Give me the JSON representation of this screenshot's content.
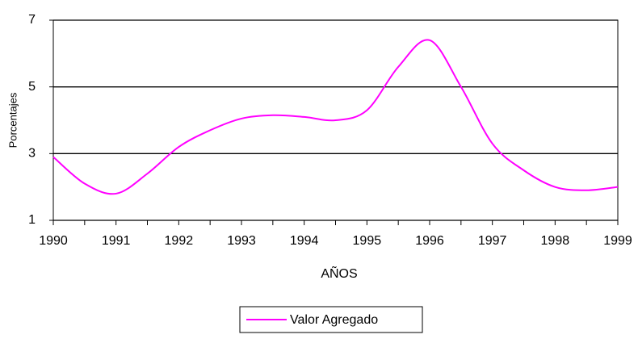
{
  "chart_data": {
    "type": "line",
    "x": [
      1990,
      1990.5,
      1991,
      1991.5,
      1992,
      1992.5,
      1993,
      1993.5,
      1994,
      1994.5,
      1995,
      1995.5,
      1996,
      1996.5,
      1997,
      1997.5,
      1998,
      1998.5,
      1999
    ],
    "series": [
      {
        "name": "Valor Agregado",
        "color": "#ff00ff",
        "values": [
          2.9,
          2.1,
          1.8,
          2.4,
          3.2,
          3.7,
          4.05,
          4.15,
          4.1,
          4.0,
          4.3,
          5.6,
          6.4,
          5.0,
          3.3,
          2.5,
          2.0,
          1.9,
          2.0
        ]
      }
    ],
    "xlim": [
      1990,
      1999
    ],
    "xticks": [
      1990,
      1991,
      1992,
      1993,
      1994,
      1995,
      1996,
      1997,
      1998,
      1999
    ],
    "ylim": [
      1,
      7
    ],
    "yticks": [
      1,
      3,
      5,
      7
    ],
    "xlabel": "AÑOS",
    "ylabel": "Porcentajes",
    "grid": true,
    "legend": "bottom"
  }
}
